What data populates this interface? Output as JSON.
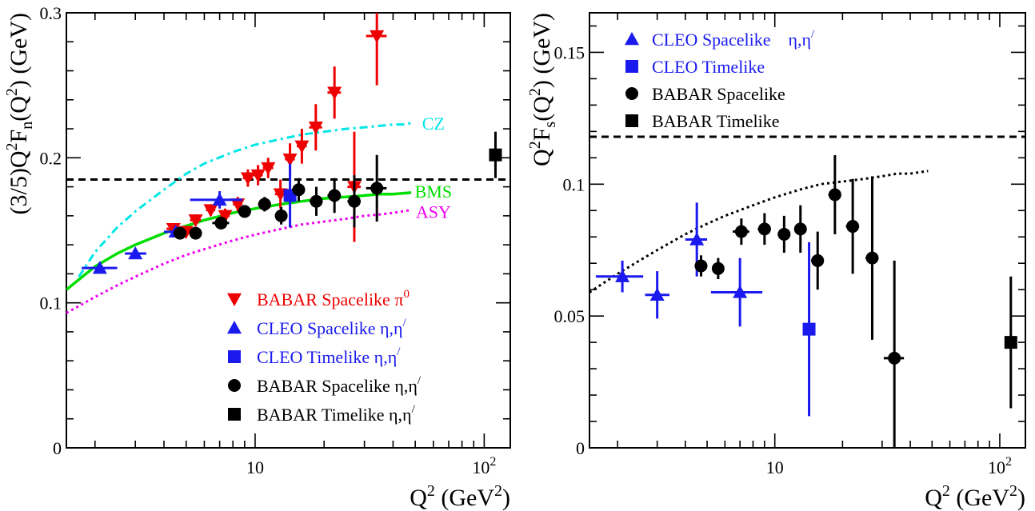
{
  "chart_data": [
    {
      "type": "scatter",
      "xscale": "log",
      "xlim": [
        1.5,
        130
      ],
      "ylim": [
        0,
        0.3
      ],
      "xlabel_main": "Q",
      "xlabel_sup": "2",
      "xlabel_rest": " (GeV",
      "xlabel_sup2": "2",
      "xlabel_end": ")",
      "ylabel": "(3/5)Q²F_n(Q²) (GeV)",
      "ylabel_parts": {
        "a": "(3/5)Q",
        "b": "2",
        "c": "F",
        "d": "n",
        "e": "(Q",
        "f": "2",
        "g": ") (GeV)"
      },
      "yticks": [
        0,
        0.1,
        0.2,
        0.3
      ],
      "ytick_labels": [
        "0",
        "0.1",
        "0.2",
        "0.3"
      ],
      "xticks_labeled": [
        10,
        100
      ],
      "xtick_labels": [
        "10",
        "10"
      ],
      "xtick_sups": [
        "",
        "2"
      ],
      "reference_line_y": 0.185,
      "curves": [
        {
          "name": "CZ",
          "color": "#00e6e6",
          "style": "dashdot",
          "x": [
            1.7,
            2,
            2.5,
            3,
            4,
            5,
            6,
            8,
            10,
            13,
            16,
            20,
            25,
            30,
            35,
            40,
            45,
            48
          ],
          "y": [
            0.118,
            0.135,
            0.152,
            0.163,
            0.178,
            0.189,
            0.196,
            0.204,
            0.209,
            0.213,
            0.216,
            0.218,
            0.22,
            0.221,
            0.222,
            0.223,
            0.223,
            0.224
          ]
        },
        {
          "name": "BMS",
          "color": "#00dd00",
          "style": "solid",
          "x": [
            1.5,
            2,
            2.5,
            3,
            4,
            5,
            6,
            8,
            10,
            13,
            16,
            20,
            25,
            30,
            35,
            40,
            48
          ],
          "y": [
            0.109,
            0.125,
            0.134,
            0.14,
            0.148,
            0.153,
            0.157,
            0.162,
            0.165,
            0.168,
            0.17,
            0.172,
            0.173,
            0.174,
            0.175,
            0.175,
            0.176
          ]
        },
        {
          "name": "ASY",
          "color": "#ee00ee",
          "style": "dotted",
          "x": [
            1.5,
            2,
            2.5,
            3,
            4,
            5,
            6,
            8,
            10,
            13,
            16,
            20,
            25,
            30,
            35,
            40,
            48
          ],
          "y": [
            0.093,
            0.104,
            0.112,
            0.118,
            0.127,
            0.133,
            0.137,
            0.143,
            0.147,
            0.151,
            0.154,
            0.156,
            0.158,
            0.16,
            0.161,
            0.162,
            0.164
          ]
        }
      ],
      "curve_labels": [
        {
          "text": "CZ",
          "color": "#00e6e6",
          "x": 60,
          "y": 0.224
        },
        {
          "text": "BMS",
          "color": "#00dd00",
          "x": 60,
          "y": 0.177
        },
        {
          "text": "ASY",
          "color": "#ee00ee",
          "x": 60,
          "y": 0.163
        }
      ],
      "series": [
        {
          "name": "BABAR Spacelike π0",
          "label_main": "BABAR Spacelike π",
          "label_sup": "0",
          "color": "#ee0000",
          "marker": "triangle-down",
          "points": [
            {
              "x": 4.4,
              "y": 0.151,
              "xerr": [
                0.3,
                0.3
              ],
              "yerr": 0.004
            },
            {
              "x": 5.0,
              "y": 0.149,
              "xerr": [
                0.25,
                0.25
              ],
              "yerr": 0.004
            },
            {
              "x": 5.5,
              "y": 0.157,
              "xerr": [
                0.3,
                0.3
              ],
              "yerr": 0.004
            },
            {
              "x": 6.4,
              "y": 0.164,
              "xerr": [
                0.3,
                0.3
              ],
              "yerr": 0.004
            },
            {
              "x": 7.4,
              "y": 0.16,
              "xerr": [
                0.35,
                0.35
              ],
              "yerr": 0.005
            },
            {
              "x": 8.4,
              "y": 0.168,
              "xerr": [
                0.4,
                0.4
              ],
              "yerr": 0.005
            },
            {
              "x": 9.3,
              "y": 0.186,
              "xerr": [
                0.45,
                0.45
              ],
              "yerr": 0.006
            },
            {
              "x": 10.3,
              "y": 0.188,
              "xerr": [
                0.5,
                0.5
              ],
              "yerr": 0.007
            },
            {
              "x": 11.4,
              "y": 0.193,
              "xerr": [
                0.6,
                0.6
              ],
              "yerr": 0.007
            },
            {
              "x": 12.9,
              "y": 0.175,
              "xerr": [
                0.7,
                0.7
              ],
              "yerr": 0.01
            },
            {
              "x": 14.2,
              "y": 0.199,
              "xerr": [
                0.7,
                0.7
              ],
              "yerr": 0.011
            },
            {
              "x": 16.0,
              "y": 0.208,
              "xerr": [
                0.8,
                0.8
              ],
              "yerr": 0.012
            },
            {
              "x": 18.4,
              "y": 0.221,
              "xerr": [
                1.2,
                1.2
              ],
              "yerr": 0.016
            },
            {
              "x": 22.2,
              "y": 0.245,
              "xerr": [
                1.5,
                1.5
              ],
              "yerr": 0.018
            },
            {
              "x": 27.1,
              "y": 0.18,
              "xerr": [
                1.8,
                1.8
              ],
              "yerr": 0.038
            },
            {
              "x": 34.0,
              "y": 0.284,
              "xerr": [
                3.5,
                3.5
              ],
              "yerr": 0.034
            }
          ]
        },
        {
          "name": "CLEO Spacelike η,η/",
          "label_main": "CLEO Spacelike η,η",
          "label_sup": "/",
          "color": "#1a1aee",
          "marker": "triangle-up",
          "points": [
            {
              "x": 2.1,
              "y": 0.124,
              "xerr": [
                0.35,
                0.4
              ],
              "yerr": 0.002
            },
            {
              "x": 3.0,
              "y": 0.134,
              "xerr": [
                0.3,
                0.35
              ],
              "yerr": 0.002
            },
            {
              "x": 4.5,
              "y": 0.149,
              "xerr": [
                0.5,
                0.5
              ],
              "yerr": 0.003
            },
            {
              "x": 7.0,
              "y": 0.171,
              "xerr": [
                1.8,
                1.8
              ],
              "yerr": 0.006
            }
          ]
        },
        {
          "name": "CLEO Timelike η,η/",
          "label_main": "CLEO Timelike η,η",
          "label_sup": "/",
          "color": "#1a1aee",
          "marker": "square",
          "points": [
            {
              "x": 14.2,
              "y": 0.174,
              "xerr": [
                0,
                0
              ],
              "yerr": 0.022
            }
          ]
        },
        {
          "name": "BABAR Spacelike η,η/",
          "label_main": "BABAR Spacelike η,η",
          "label_sup": "/",
          "color": "#000000",
          "marker": "circle",
          "points": [
            {
              "x": 4.7,
              "y": 0.148,
              "xerr": [
                0.3,
                0.3
              ],
              "yerr": 0.003
            },
            {
              "x": 5.5,
              "y": 0.148,
              "xerr": [
                0.3,
                0.3
              ],
              "yerr": 0.003
            },
            {
              "x": 7.1,
              "y": 0.155,
              "xerr": [
                0.6,
                0.6
              ],
              "yerr": 0.004
            },
            {
              "x": 9.0,
              "y": 0.163,
              "xerr": [
                0.6,
                0.6
              ],
              "yerr": 0.004
            },
            {
              "x": 11.0,
              "y": 0.168,
              "xerr": [
                0.7,
                0.7
              ],
              "yerr": 0.005
            },
            {
              "x": 13.0,
              "y": 0.16,
              "xerr": [
                0.8,
                0.8
              ],
              "yerr": 0.006
            },
            {
              "x": 15.5,
              "y": 0.178,
              "xerr": [
                1.0,
                1.0
              ],
              "yerr": 0.008
            },
            {
              "x": 18.5,
              "y": 0.17,
              "xerr": [
                1.2,
                1.2
              ],
              "yerr": 0.01
            },
            {
              "x": 22.2,
              "y": 0.174,
              "xerr": [
                1.5,
                1.5
              ],
              "yerr": 0.012
            },
            {
              "x": 27.1,
              "y": 0.17,
              "xerr": [
                1.8,
                1.8
              ],
              "yerr": 0.018
            },
            {
              "x": 34.0,
              "y": 0.179,
              "xerr": [
                3.5,
                3.5
              ],
              "yerr": 0.023
            }
          ]
        },
        {
          "name": "BABAR Timelike η,η/",
          "label_main": "BABAR Timelike η,η",
          "label_sup": "/",
          "color": "#000000",
          "marker": "square",
          "points": [
            {
              "x": 112,
              "y": 0.202,
              "xerr": [
                0,
                0
              ],
              "yerr": 0.016
            }
          ]
        }
      ],
      "legend_order": [
        0,
        1,
        2,
        3,
        4
      ]
    },
    {
      "type": "scatter",
      "xscale": "log",
      "xlim": [
        1.5,
        130
      ],
      "ylim": [
        0,
        0.165
      ],
      "xlabel_main": "Q",
      "xlabel_sup": "2",
      "xlabel_rest": " (GeV",
      "xlabel_sup2": "2",
      "xlabel_end": ")",
      "ylabel": "Q²F_s(Q²) (GeV)",
      "ylabel_parts": {
        "a": "Q",
        "b": "2",
        "c": "F",
        "d": "s",
        "e": "(Q",
        "f": "2",
        "g": ") (GeV)"
      },
      "yticks": [
        0,
        0.05,
        0.1,
        0.15
      ],
      "ytick_labels": [
        "0",
        "0.05",
        "0.1",
        "0.15"
      ],
      "xticks_labeled": [
        10,
        100
      ],
      "xtick_labels": [
        "10",
        "10"
      ],
      "xtick_sups": [
        "",
        "2"
      ],
      "reference_line_y": 0.118,
      "curves": [
        {
          "name": "",
          "color": "#000000",
          "style": "dotted",
          "x": [
            1.5,
            2,
            2.5,
            3,
            4,
            5,
            6,
            8,
            10,
            13,
            16,
            20,
            25,
            30,
            35,
            40,
            48
          ],
          "y": [
            0.059,
            0.066,
            0.071,
            0.075,
            0.081,
            0.085,
            0.088,
            0.092,
            0.095,
            0.098,
            0.1,
            0.101,
            0.102,
            0.103,
            0.104,
            0.104,
            0.105
          ]
        }
      ],
      "curve_labels": [],
      "series": [
        {
          "name": "CLEO Spacelike η,η/",
          "label_main": "CLEO Spacelike",
          "label_gap": "η,η",
          "label_sup": "/",
          "color": "#1a1aee",
          "marker": "triangle-up",
          "points": [
            {
              "x": 2.1,
              "y": 0.065,
              "xerr": [
                0.5,
                0.5
              ],
              "yerr": 0.006
            },
            {
              "x": 3.0,
              "y": 0.058,
              "xerr": [
                0.35,
                0.4
              ],
              "yerr": 0.009
            },
            {
              "x": 4.5,
              "y": 0.079,
              "xerr": [
                0.5,
                0.5
              ],
              "yerr": 0.014
            },
            {
              "x": 7.0,
              "y": 0.059,
              "xerr": [
                1.8,
                1.8
              ],
              "yerr": 0.013
            }
          ]
        },
        {
          "name": "CLEO Timelike",
          "label_main": "CLEO Timelike",
          "label_gap": "",
          "label_sup": "",
          "color": "#1a1aee",
          "marker": "square",
          "points": [
            {
              "x": 14.2,
              "y": 0.045,
              "xerr": [
                0,
                0
              ],
              "yerr": 0.033
            }
          ]
        },
        {
          "name": "BABAR Spacelike",
          "label_main": "BABAR Spacelike",
          "label_gap": "",
          "label_sup": "",
          "color": "#000000",
          "marker": "circle",
          "points": [
            {
              "x": 4.7,
              "y": 0.069,
              "xerr": [
                0.3,
                0.3
              ],
              "yerr": 0.004
            },
            {
              "x": 5.6,
              "y": 0.068,
              "xerr": [
                0.3,
                0.3
              ],
              "yerr": 0.004
            },
            {
              "x": 7.1,
              "y": 0.082,
              "xerr": [
                0.6,
                0.6
              ],
              "yerr": 0.005
            },
            {
              "x": 9.0,
              "y": 0.083,
              "xerr": [
                0.6,
                0.6
              ],
              "yerr": 0.006
            },
            {
              "x": 11.0,
              "y": 0.081,
              "xerr": [
                0.7,
                0.7
              ],
              "yerr": 0.007
            },
            {
              "x": 13.0,
              "y": 0.083,
              "xerr": [
                0.8,
                0.8
              ],
              "yerr": 0.009
            },
            {
              "x": 15.5,
              "y": 0.071,
              "xerr": [
                1.0,
                1.0
              ],
              "yerr": 0.011
            },
            {
              "x": 18.5,
              "y": 0.096,
              "xerr": [
                1.2,
                1.2
              ],
              "yerr": 0.015
            },
            {
              "x": 22.2,
              "y": 0.084,
              "xerr": [
                1.5,
                1.5
              ],
              "yerr": 0.018
            },
            {
              "x": 27.1,
              "y": 0.072,
              "xerr": [
                1.8,
                1.8
              ],
              "yerr": 0.031
            },
            {
              "x": 34.0,
              "y": 0.034,
              "xerr": [
                3.5,
                3.5
              ],
              "yerr": 0.037
            }
          ]
        },
        {
          "name": "BABAR Timelike",
          "label_main": "BABAR Timelike",
          "label_gap": "",
          "label_sup": "",
          "color": "#000000",
          "marker": "square",
          "points": [
            {
              "x": 112,
              "y": 0.04,
              "xerr": [
                0,
                0
              ],
              "yerr": 0.025
            }
          ]
        }
      ],
      "legend_order": [
        0,
        1,
        2,
        3
      ]
    }
  ]
}
